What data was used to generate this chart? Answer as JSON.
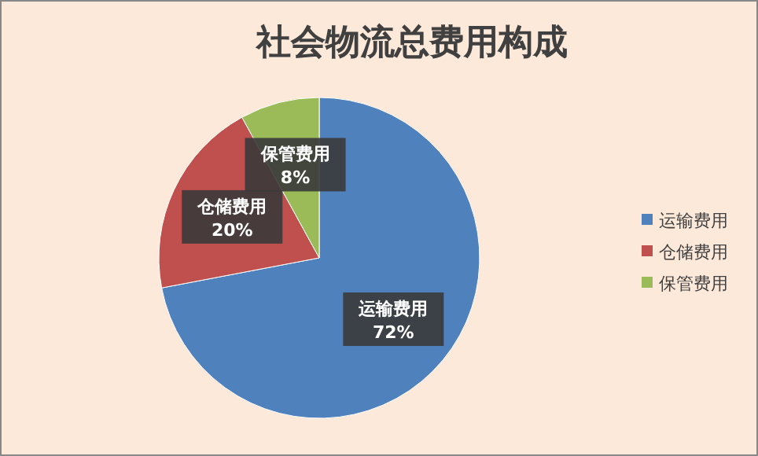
{
  "chart_data": {
    "type": "pie",
    "title": "社会物流总费用构成",
    "categories": [
      "运输费用",
      "仓储费用",
      "保管费用"
    ],
    "values": [
      72,
      20,
      8
    ],
    "colors": [
      "#4f81bd",
      "#c0504d",
      "#9bbb59"
    ],
    "value_labels": [
      "72%",
      "20%",
      "8%"
    ],
    "legend": "right"
  }
}
